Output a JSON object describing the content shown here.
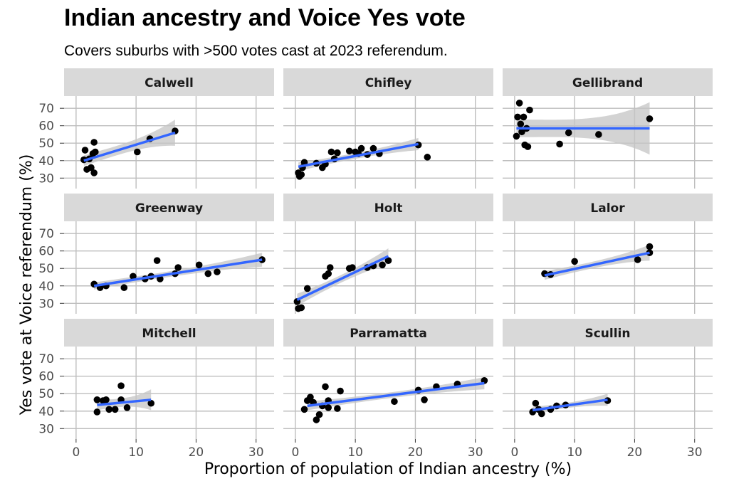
{
  "title": "Indian ancestry and Voice Yes vote",
  "subtitle": "Covers suburbs with >500 votes cast at 2023 referendum.",
  "chart_data": {
    "type": "scatter",
    "faceted": true,
    "xlabel": "Proportion of population of Indian ancestry (%)",
    "ylabel": "Yes vote at Voice referendum (%)",
    "xlim": [
      -2,
      33
    ],
    "ylim": [
      24,
      77
    ],
    "x_ticks": [
      0,
      10,
      20,
      30
    ],
    "y_ticks": [
      30,
      40,
      50,
      60,
      70
    ],
    "grid": true,
    "colors": {
      "points": "#000000",
      "trend_line": "#3366ff",
      "ribbon": "#c4c4c4",
      "strip": "#d9d9d9",
      "grid": "#bebebe"
    },
    "panels": [
      {
        "name": "Calwell",
        "points": [
          [
            1.3,
            40.5
          ],
          [
            1.5,
            46
          ],
          [
            1.8,
            35
          ],
          [
            2.2,
            41
          ],
          [
            2.5,
            36
          ],
          [
            2.8,
            44
          ],
          [
            3.0,
            50.5
          ],
          [
            3.2,
            45
          ],
          [
            3.0,
            33
          ],
          [
            10.2,
            45
          ],
          [
            12.3,
            52.5
          ],
          [
            16.5,
            57
          ]
        ],
        "trend": [
          [
            1.3,
            40
          ],
          [
            16.5,
            56
          ]
        ],
        "ribbon_halfwidth": [
          3.0,
          7.5
        ]
      },
      {
        "name": "Chifley",
        "points": [
          [
            0.5,
            33
          ],
          [
            0.7,
            31
          ],
          [
            1.0,
            32
          ],
          [
            1.2,
            36
          ],
          [
            1.5,
            39
          ],
          [
            3.5,
            38.5
          ],
          [
            4.5,
            36
          ],
          [
            5.0,
            38
          ],
          [
            6.0,
            45
          ],
          [
            6.5,
            41
          ],
          [
            7.0,
            44.5
          ],
          [
            9.0,
            45.5
          ],
          [
            10.0,
            45
          ],
          [
            10.5,
            44
          ],
          [
            11.0,
            47
          ],
          [
            12.0,
            43.5
          ],
          [
            13.0,
            47
          ],
          [
            14.0,
            44
          ],
          [
            20.5,
            49
          ],
          [
            22.0,
            42
          ]
        ],
        "trend": [
          [
            0.5,
            36.5
          ],
          [
            20.5,
            49.5
          ]
        ],
        "ribbon_halfwidth": [
          2.5,
          3.5
        ]
      },
      {
        "name": "Gellibrand",
        "points": [
          [
            0.3,
            54
          ],
          [
            0.5,
            65
          ],
          [
            0.8,
            73
          ],
          [
            1.0,
            61
          ],
          [
            1.2,
            56.5
          ],
          [
            1.5,
            65
          ],
          [
            1.7,
            49
          ],
          [
            2.0,
            58.5
          ],
          [
            2.2,
            48
          ],
          [
            2.5,
            69
          ],
          [
            7.5,
            49.5
          ],
          [
            9.0,
            56
          ],
          [
            14.0,
            55
          ],
          [
            22.5,
            64
          ]
        ],
        "trend": [
          [
            0.3,
            58.5
          ],
          [
            22.5,
            58.5
          ]
        ],
        "ribbon_halfwidth": [
          5.0,
          15.0
        ]
      },
      {
        "name": "Greenway",
        "points": [
          [
            3.0,
            41
          ],
          [
            4.0,
            39
          ],
          [
            5.0,
            40
          ],
          [
            8.0,
            39
          ],
          [
            9.5,
            45.5
          ],
          [
            11.5,
            44
          ],
          [
            12.5,
            45.5
          ],
          [
            13.5,
            54.5
          ],
          [
            14.0,
            44
          ],
          [
            16.5,
            47
          ],
          [
            17.0,
            50.5
          ],
          [
            20.5,
            52
          ],
          [
            22.0,
            47
          ],
          [
            23.5,
            48
          ],
          [
            31.0,
            55
          ]
        ],
        "trend": [
          [
            3.0,
            40
          ],
          [
            31.0,
            55
          ]
        ],
        "ribbon_halfwidth": [
          2.0,
          4.0
        ]
      },
      {
        "name": "Holt",
        "points": [
          [
            0.3,
            31
          ],
          [
            0.5,
            27
          ],
          [
            1.0,
            27.5
          ],
          [
            2.0,
            38.5
          ],
          [
            5.0,
            45.5
          ],
          [
            5.5,
            47
          ],
          [
            5.8,
            50.5
          ],
          [
            9.0,
            50
          ],
          [
            9.5,
            50.5
          ],
          [
            12.0,
            50.5
          ],
          [
            13.0,
            51.5
          ],
          [
            14.5,
            52
          ],
          [
            15.5,
            54.5
          ]
        ],
        "trend": [
          [
            0.3,
            32
          ],
          [
            15.5,
            57
          ]
        ],
        "ribbon_halfwidth": [
          3.5,
          4.5
        ]
      },
      {
        "name": "Lalor",
        "points": [
          [
            5.0,
            47
          ],
          [
            6.0,
            46.5
          ],
          [
            10.0,
            54
          ],
          [
            20.5,
            55
          ],
          [
            22.5,
            59
          ],
          [
            22.5,
            62.5
          ]
        ],
        "trend": [
          [
            5.0,
            46
          ],
          [
            22.5,
            59
          ]
        ],
        "ribbon_halfwidth": [
          2.5,
          4.5
        ]
      },
      {
        "name": "Mitchell",
        "points": [
          [
            3.5,
            39.5
          ],
          [
            3.5,
            46.5
          ],
          [
            4.5,
            46
          ],
          [
            5.0,
            46.5
          ],
          [
            5.5,
            41
          ],
          [
            6.5,
            41
          ],
          [
            7.5,
            54.5
          ],
          [
            7.5,
            46.5
          ],
          [
            8.5,
            42
          ],
          [
            12.5,
            44.5
          ]
        ],
        "trend": [
          [
            3.5,
            43.5
          ],
          [
            12.5,
            46.5
          ]
        ],
        "ribbon_halfwidth": [
          3.0,
          6.0
        ]
      },
      {
        "name": "Parramatta",
        "points": [
          [
            1.5,
            41
          ],
          [
            2.0,
            46
          ],
          [
            2.5,
            48
          ],
          [
            3.0,
            45
          ],
          [
            3.5,
            35
          ],
          [
            4.0,
            38
          ],
          [
            4.5,
            43
          ],
          [
            5.0,
            54
          ],
          [
            5.5,
            46
          ],
          [
            5.5,
            42
          ],
          [
            7.0,
            41.5
          ],
          [
            7.5,
            51.5
          ],
          [
            16.5,
            45.5
          ],
          [
            20.5,
            52
          ],
          [
            21.5,
            46.5
          ],
          [
            23.5,
            54
          ],
          [
            27.0,
            55.5
          ],
          [
            31.5,
            57.5
          ]
        ],
        "trend": [
          [
            2.0,
            43
          ],
          [
            31.5,
            56
          ]
        ],
        "ribbon_halfwidth": [
          2.5,
          3.5
        ]
      },
      {
        "name": "Scullin",
        "points": [
          [
            3.0,
            39.5
          ],
          [
            3.5,
            44.5
          ],
          [
            4.0,
            41
          ],
          [
            4.5,
            38.5
          ],
          [
            6.0,
            41
          ],
          [
            7.0,
            43
          ],
          [
            8.5,
            43.5
          ],
          [
            15.5,
            46
          ]
        ],
        "trend": [
          [
            3.0,
            40.5
          ],
          [
            15.5,
            46.5
          ]
        ],
        "ribbon_halfwidth": [
          2.0,
          3.5
        ]
      }
    ]
  }
}
